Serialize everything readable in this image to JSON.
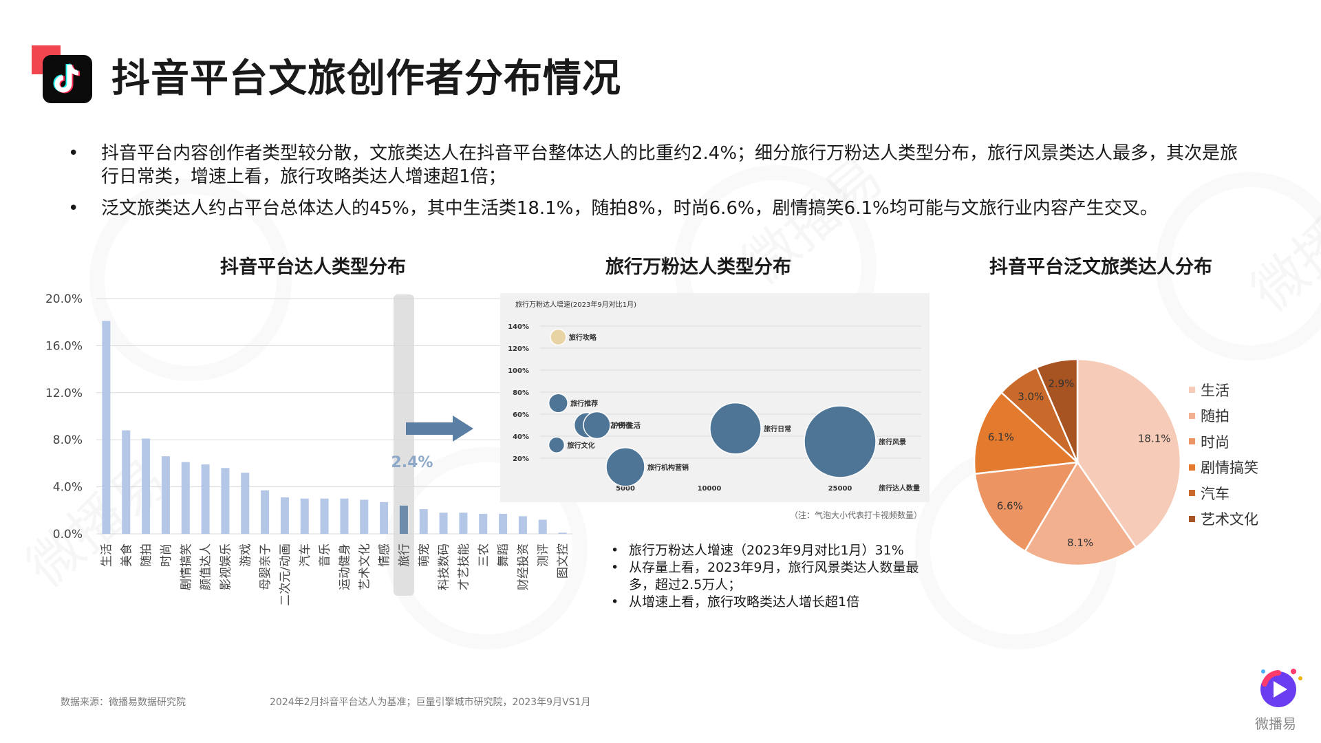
{
  "page": {
    "title": "抖音平台文旅创作者分布情况",
    "bullets": [
      "抖音平台内容创作者类型较分散，文旅类达人在抖音平台整体达人的比重约2.4%；细分旅行万粉达人类型分布，旅行风景类达人最多，其次是旅行日常类，增速上看，旅行攻略类达人增速超1倍；",
      "泛文旅类达人约占平台总体达人的45%，其中生活类18.1%，随拍8%，时尚6.6%，剧情搞笑6.1%均可能与文旅行业内容产生交叉。"
    ],
    "footer": {
      "source": "数据来源：微播易数据研究院",
      "note": "2024年2月抖音平台达人为基准；巨量引擎城市研究院，2023年9月VS1月"
    },
    "brand": "微播易",
    "watermark": "微播易"
  },
  "colors": {
    "accent_red": "#f1464f",
    "bar": "#b4c7e7",
    "bar_highlight": "#6d8baa",
    "highlight_band": "#e0e0e0",
    "bubble": "#4e7596",
    "callout_text": "#8ea9c8",
    "arrow": "#5b7fa4"
  },
  "chart_data": [
    {
      "type": "bar",
      "title": "抖音平台达人类型分布",
      "categories": [
        "生活",
        "美食",
        "随拍",
        "时尚",
        "剧情搞笑",
        "颜值达人",
        "影视娱乐",
        "游戏",
        "母婴亲子",
        "二次元/动画",
        "汽车",
        "音乐",
        "运动健身",
        "艺术文化",
        "情感",
        "旅行",
        "萌宠",
        "科技数码",
        "才艺技能",
        "三农",
        "舞蹈",
        "财经投资",
        "测评",
        "图文控"
      ],
      "values": [
        18.1,
        8.8,
        8.1,
        6.6,
        6.1,
        5.9,
        5.6,
        5.2,
        3.7,
        3.1,
        3.0,
        3.0,
        3.0,
        2.9,
        2.7,
        2.4,
        2.1,
        1.8,
        1.8,
        1.7,
        1.7,
        1.5,
        1.2,
        0.1
      ],
      "highlight": "旅行",
      "highlight_label": "2.4%",
      "yticks": [
        "0.0%",
        "4.0%",
        "8.0%",
        "12.0%",
        "16.0%",
        "20.0%"
      ],
      "ylim": [
        0,
        20
      ],
      "grid": true
    },
    {
      "type": "scatter",
      "title": "旅行万粉达人类型分布",
      "inner_title": "旅行万粉达人增速(2023年9月对比1月)",
      "xlabel": "旅行达人数量",
      "xticks": [
        "5000",
        "10000",
        "25000"
      ],
      "yticks": [
        "20%",
        "40%",
        "60%",
        "80%",
        "100%",
        "120%",
        "140%"
      ],
      "points": [
        {
          "label": "旅行攻略",
          "x": 1000,
          "y": 130,
          "size": 1,
          "color": "#e8d3a4"
        },
        {
          "label": "旅行推荐",
          "x": 1000,
          "y": 70,
          "size": 2
        },
        {
          "label": "酒店/民宿",
          "x": 2700,
          "y": 50,
          "size": 5
        },
        {
          "label": "户外生活",
          "x": 3300,
          "y": 50,
          "size": 6
        },
        {
          "label": "旅行文化",
          "x": 900,
          "y": 32,
          "size": 1
        },
        {
          "label": "旅行日常",
          "x": 13000,
          "y": 47,
          "size": 32
        },
        {
          "label": "旅行机构营销",
          "x": 5000,
          "y": 12,
          "size": 16
        },
        {
          "label": "旅行风景",
          "x": 25000,
          "y": 35,
          "size": 70
        }
      ],
      "note": "（注：气泡大小代表打卡视频数量）",
      "bullets": [
        "旅行万粉达人增速（2023年9月对比1月）31%",
        "从存量上看，2023年9月，旅行风景类达人数量最多，超过2.5万人；",
        "从增速上看，旅行攻略类达人增长超1倍"
      ]
    },
    {
      "type": "pie",
      "title": "抖音平台泛文旅类达人分布",
      "slices": [
        {
          "label": "生活",
          "value": 18.1,
          "text": "18.1%",
          "color": "#f6cbb8"
        },
        {
          "label": "随拍",
          "value": 8.1,
          "text": "8.1%",
          "color": "#f2b08f"
        },
        {
          "label": "时尚",
          "value": 6.6,
          "text": "6.6%",
          "color": "#ed9562"
        },
        {
          "label": "剧情搞笑",
          "value": 6.1,
          "text": "6.1%",
          "color": "#e47a2e"
        },
        {
          "label": "汽车",
          "value": 3.0,
          "text": "3.0%",
          "color": "#c9692a"
        },
        {
          "label": "艺术文化",
          "value": 2.9,
          "text": "2.9%",
          "color": "#a85322"
        }
      ],
      "legend": "right"
    }
  ]
}
